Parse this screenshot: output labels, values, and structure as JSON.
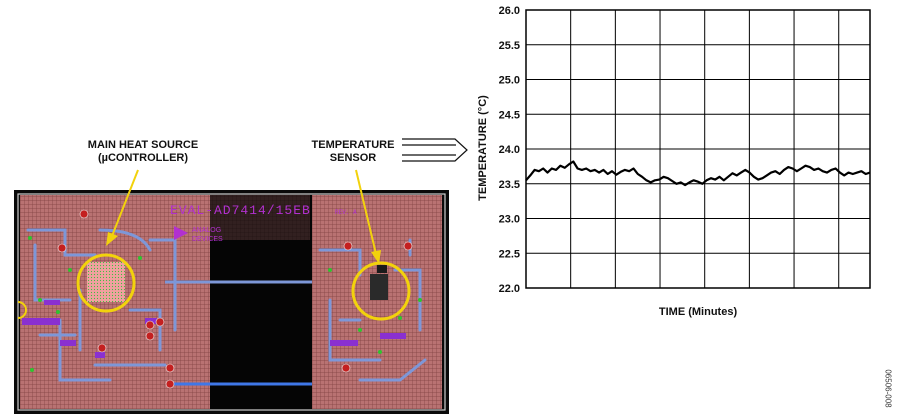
{
  "board": {
    "silkscreen_name": "EVAL-AD7414/15EB",
    "silkscreen_rev": "REV. A",
    "logo_text": [
      "ANALOG",
      "DEVICES"
    ],
    "callouts": {
      "heat_source": [
        "MAIN HEAT SOURCE",
        "(µCONTROLLER)"
      ],
      "sensor": [
        "TEMPERATURE",
        "SENSOR"
      ]
    },
    "colors": {
      "board": "#b86f6f",
      "grid": "#7a3b3b",
      "trace": "#7d97d8",
      "highlight": "#f2d20c",
      "black": "#000000"
    }
  },
  "figure_id": "06506-008",
  "chart_data": {
    "type": "line",
    "title": "",
    "xlabel": "TIME (Minutes)",
    "ylabel": "TEMPERATURE (°C)",
    "ylim": [
      22.0,
      26.0
    ],
    "yticks": [
      22.0,
      22.5,
      23.0,
      23.5,
      24.0,
      24.5,
      25.0,
      25.5,
      26.0
    ],
    "ytick_labels": [
      "22.0",
      "22.5",
      "23.0",
      "23.5",
      "24.0",
      "24.5",
      "25.0",
      "25.5",
      "26.0"
    ],
    "x_divisions": 8,
    "grid": true,
    "series": [
      {
        "color": "#000000",
        "x": [
          0,
          0.5,
          1,
          1.5,
          2,
          2.5,
          3,
          3.5,
          4,
          4.5,
          5,
          5.5,
          6,
          6.5,
          7,
          7.5,
          8,
          8.5,
          9,
          9.5,
          10,
          10.5,
          11,
          11.5,
          12,
          12.5,
          13,
          13.5,
          14,
          14.5,
          15,
          15.5,
          16,
          16.5,
          17,
          17.5,
          18,
          18.5,
          19,
          19.5,
          20,
          20.5,
          21,
          21.5,
          22,
          22.5,
          23,
          23.5,
          24,
          24.5,
          25,
          25.5,
          26,
          26.5,
          27,
          27.5,
          28,
          28.5,
          29,
          29.5,
          30,
          30.5,
          31,
          31.5,
          32,
          32.5,
          33,
          33.5,
          34,
          34.5,
          35,
          35.5,
          36,
          36.5,
          37,
          37.5,
          38,
          38.5,
          39,
          39.5,
          40
        ],
        "y": [
          23.55,
          23.62,
          23.7,
          23.68,
          23.72,
          23.66,
          23.72,
          23.7,
          23.76,
          23.73,
          23.78,
          23.82,
          23.72,
          23.7,
          23.72,
          23.68,
          23.7,
          23.66,
          23.7,
          23.64,
          23.68,
          23.63,
          23.67,
          23.7,
          23.68,
          23.72,
          23.64,
          23.6,
          23.55,
          23.52,
          23.55,
          23.56,
          23.6,
          23.58,
          23.54,
          23.5,
          23.52,
          23.48,
          23.52,
          23.55,
          23.53,
          23.5,
          23.55,
          23.58,
          23.56,
          23.6,
          23.55,
          23.6,
          23.65,
          23.62,
          23.66,
          23.7,
          23.66,
          23.6,
          23.56,
          23.58,
          23.62,
          23.66,
          23.68,
          23.64,
          23.7,
          23.74,
          23.72,
          23.68,
          23.72,
          23.76,
          23.74,
          23.7,
          23.72,
          23.68,
          23.66,
          23.7,
          23.72,
          23.66,
          23.62,
          23.66,
          23.64,
          23.66,
          23.68,
          23.64,
          23.66
        ]
      }
    ]
  }
}
